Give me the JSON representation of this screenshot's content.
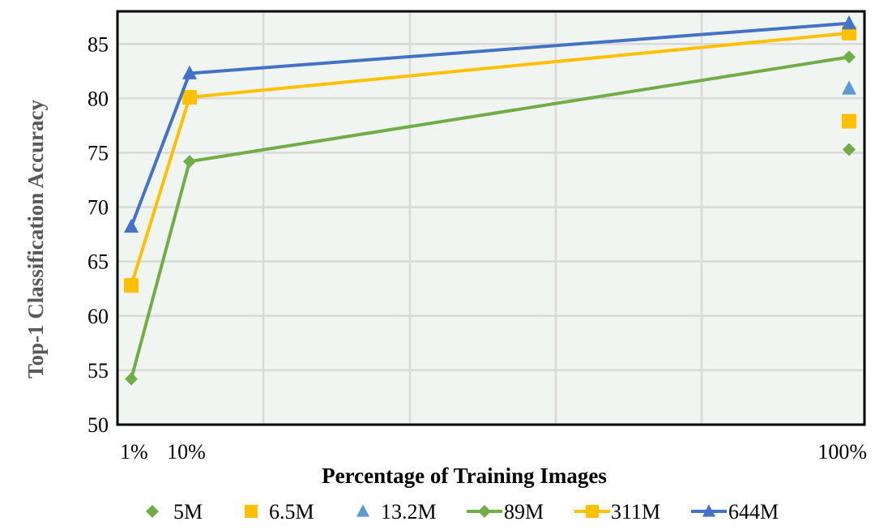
{
  "chart_data": {
    "type": "line",
    "title": "",
    "xlabel": "Percentage of Training Images",
    "ylabel": "Top-1 Classification Accuracy",
    "x": [
      1,
      10,
      100
    ],
    "x_tick_labels": [
      "1%",
      "10%",
      "100%"
    ],
    "ylim": [
      50,
      88
    ],
    "y_ticks": [
      50,
      55,
      60,
      65,
      70,
      75,
      80,
      85
    ],
    "grid": true,
    "legend_position": "bottom",
    "series": [
      {
        "name": "5M",
        "kind": "marker",
        "marker": "diamond",
        "color": "#70AD47",
        "points": [
          {
            "x": 100,
            "y": 75.3
          }
        ]
      },
      {
        "name": "6.5M",
        "kind": "marker",
        "marker": "square",
        "color": "#FFC000",
        "points": [
          {
            "x": 100,
            "y": 77.9
          }
        ]
      },
      {
        "name": "13.2M",
        "kind": "marker",
        "marker": "triangle",
        "color": "#5B9BD5",
        "points": [
          {
            "x": 100,
            "y": 80.9
          }
        ]
      },
      {
        "name": "89M",
        "kind": "line",
        "marker": "diamond",
        "color": "#70AD47",
        "points": [
          {
            "x": 1,
            "y": 54.2
          },
          {
            "x": 10,
            "y": 74.2
          },
          {
            "x": 100,
            "y": 83.8
          }
        ]
      },
      {
        "name": "311M",
        "kind": "line",
        "marker": "square",
        "color": "#FFC000",
        "points": [
          {
            "x": 1,
            "y": 62.8
          },
          {
            "x": 10,
            "y": 80.1
          },
          {
            "x": 100,
            "y": 86.0
          }
        ]
      },
      {
        "name": "644M",
        "kind": "line",
        "marker": "triangle",
        "color": "#4472C4",
        "points": [
          {
            "x": 1,
            "y": 68.2
          },
          {
            "x": 10,
            "y": 82.3
          },
          {
            "x": 100,
            "y": 86.9
          }
        ]
      }
    ]
  }
}
